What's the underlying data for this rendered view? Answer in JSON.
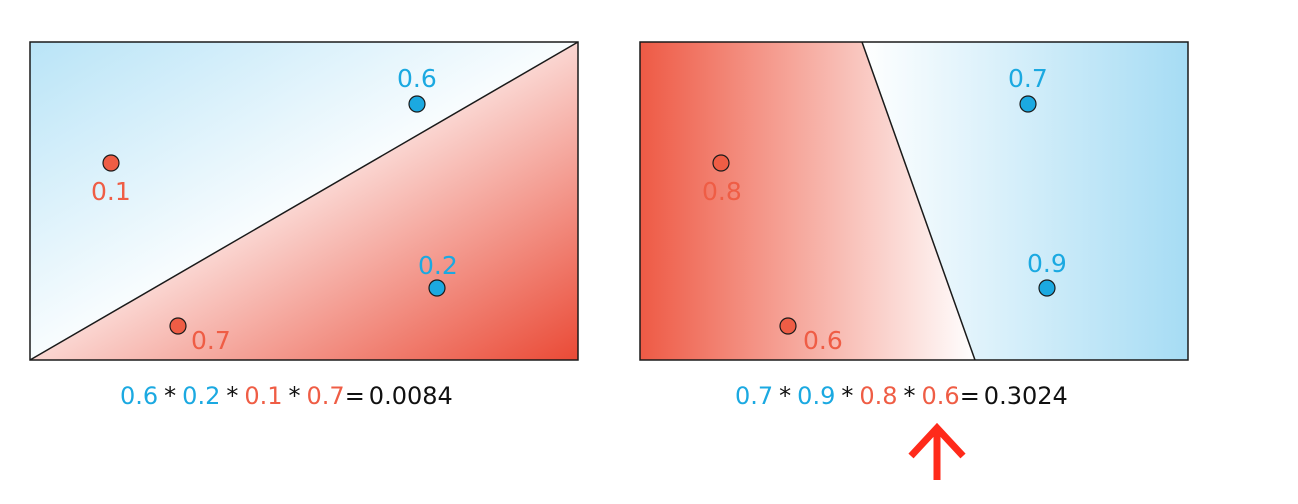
{
  "colors": {
    "blue": "#1ba9e1",
    "red": "#ef5d45",
    "line": "#1a1a1a"
  },
  "left_panel": {
    "points": [
      {
        "label": "0.6",
        "color": "blue"
      },
      {
        "label": "0.1",
        "color": "red"
      },
      {
        "label": "0.2",
        "color": "blue"
      },
      {
        "label": "0.7",
        "color": "red"
      }
    ],
    "formula": {
      "factors": [
        "0.6",
        "0.2",
        "0.1",
        "0.7"
      ],
      "factor_colors": [
        "blue",
        "blue",
        "red",
        "red"
      ],
      "operator": "*",
      "equals": "=",
      "result": "0.0084"
    }
  },
  "right_panel": {
    "points": [
      {
        "label": "0.7",
        "color": "blue"
      },
      {
        "label": "0.8",
        "color": "red"
      },
      {
        "label": "0.9",
        "color": "blue"
      },
      {
        "label": "0.6",
        "color": "red"
      }
    ],
    "formula": {
      "factors": [
        "0.7",
        "0.9",
        "0.8",
        "0.6"
      ],
      "factor_colors": [
        "blue",
        "blue",
        "red",
        "red"
      ],
      "operator": "*",
      "equals": "=",
      "result": "0.3024"
    }
  },
  "highlight_arrow": {
    "color": "#ff2a1a",
    "target": "right_panel"
  }
}
